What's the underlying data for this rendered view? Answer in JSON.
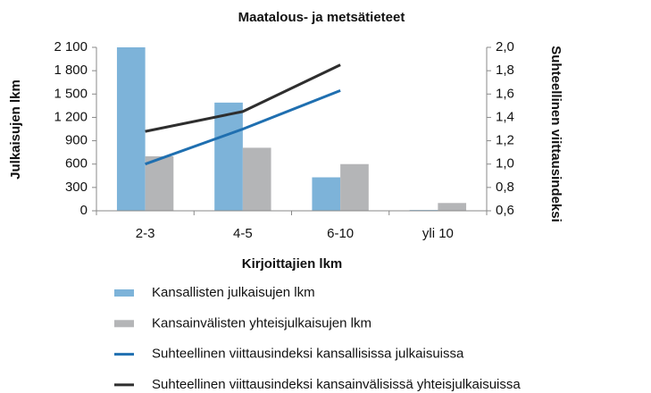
{
  "chart_data": {
    "type": "bar_line",
    "title": "Maatalous- ja metsätieteet",
    "x_label": "Kirjoittajien lkm",
    "y_label": "Julkaisujen lkm",
    "y2_label": "Suhteellinen viittausindeksi",
    "categories": [
      "2-3",
      "4-5",
      "6-10",
      "yli 10"
    ],
    "series": [
      {
        "name": "Kansallisten julkaisujen lkm",
        "type": "bar",
        "color": "#7db3d9",
        "values": [
          2100,
          1390,
          430,
          10
        ]
      },
      {
        "name": "Kansainvälisten yhteisjulkaisujen lkm",
        "type": "bar",
        "color": "#b4b5b7",
        "values": [
          700,
          810,
          600,
          100
        ]
      },
      {
        "name": "Suhteellinen viittausindeksi kansallisissa julkaisuissa",
        "type": "line",
        "axis": "y2",
        "color": "#1f6fb0",
        "values": [
          1.0,
          1.3,
          1.63,
          null
        ]
      },
      {
        "name": "Suhteellinen viittausindeksi kansainvälisissä yhteisjulkaisuissa",
        "type": "line",
        "axis": "y2",
        "color": "#2e2e2e",
        "values": [
          1.28,
          1.45,
          1.85,
          null
        ]
      }
    ],
    "ylim": [
      0,
      2100
    ],
    "yticks": [
      0,
      300,
      600,
      900,
      {
        "value": 1200,
        "label": "1 200"
      },
      {
        "value": 1500,
        "label": "1 500"
      },
      {
        "value": 1800,
        "label": "1 800"
      },
      {
        "value": 2100,
        "label": "2 100"
      }
    ],
    "y2lim": [
      0.6,
      2.0
    ],
    "y2ticks": [
      {
        "value": 0.6,
        "label": "0,6"
      },
      {
        "value": 0.8,
        "label": "0,8"
      },
      {
        "value": 1.0,
        "label": "1,0"
      },
      {
        "value": 1.2,
        "label": "1,2"
      },
      {
        "value": 1.4,
        "label": "1,4"
      },
      {
        "value": 1.6,
        "label": "1,6"
      },
      {
        "value": 1.8,
        "label": "1,8"
      },
      {
        "value": 2.0,
        "label": "2,0"
      }
    ],
    "grid": false,
    "legend": "bottom"
  }
}
